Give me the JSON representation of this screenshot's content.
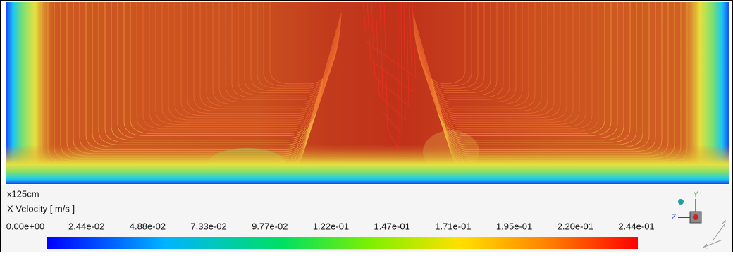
{
  "view": {
    "scale_label": "x125cm",
    "variable_label": "X Velocity [ m/s ]",
    "colorbar": {
      "tick_labels": [
        "0.00e+00",
        "2.44e-02",
        "4.88e-02",
        "7.33e-02",
        "9.77e-02",
        "1.22e-01",
        "1.47e-01",
        "1.71e-01",
        "1.95e-01",
        "2.20e-01",
        "2.44e-01"
      ]
    }
  },
  "triad": {
    "y_label": "Y",
    "z_label": "Z"
  }
}
